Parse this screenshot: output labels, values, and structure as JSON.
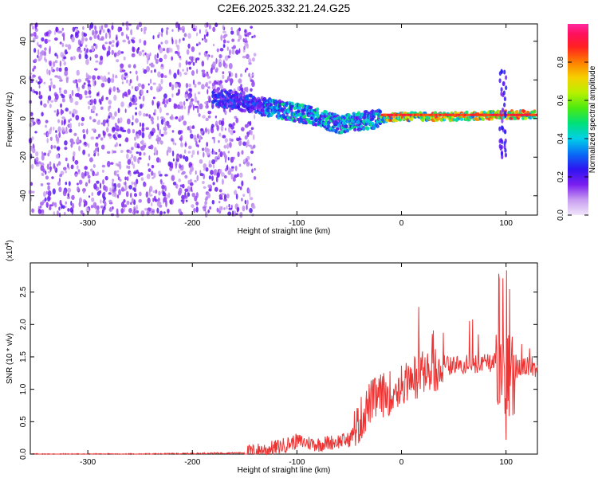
{
  "title": "C2E6.2025.332.21.24.G25",
  "chart_data": [
    {
      "type": "heatmap",
      "panel": "spectrogram",
      "xlabel": "Height of straight line (km)",
      "ylabel": "Frequency (Hz)",
      "xlim": [
        -355,
        130
      ],
      "ylim": [
        -50,
        49
      ],
      "xticks": [
        -300,
        -200,
        -100,
        0,
        100
      ],
      "yticks": [
        -40,
        -20,
        0,
        20,
        40
      ],
      "colorbar": {
        "label": "Normalized spectral amplitude",
        "range": [
          0,
          1
        ],
        "ticks": [
          0.0,
          0.2,
          0.4,
          0.6,
          0.8
        ]
      },
      "regions": [
        {
          "desc": "broadband noise",
          "x_range": [
            -355,
            -140
          ],
          "freq_range": [
            -50,
            49
          ],
          "amplitude": 0.12
        },
        {
          "desc": "signal band",
          "center_freq_at": [
            [
              -175,
              11
            ],
            [
              -130,
              6
            ],
            [
              -90,
              2
            ],
            [
              -60,
              -3
            ],
            [
              -35,
              -1
            ],
            [
              0,
              1
            ],
            [
              50,
              1
            ],
            [
              100,
              2
            ],
            [
              130,
              2
            ]
          ]
        },
        {
          "desc": "burst",
          "x": 97,
          "freq_range": [
            -22,
            25
          ]
        }
      ]
    },
    {
      "type": "line",
      "panel": "snr",
      "xlabel": "Height of straight line (km)",
      "ylabel": "SNR (10 * v/v)",
      "y_multiplier_label": "(x10",
      "y_multiplier_exp": "4",
      "y_multiplier_close": ")",
      "xlim": [
        -355,
        130
      ],
      "ylim": [
        0,
        2.95
      ],
      "xticks": [
        -300,
        -200,
        -100,
        0,
        100
      ],
      "yticks": [
        0.0,
        0.5,
        1.0,
        1.5,
        2.0,
        2.5
      ],
      "color": "#ee3333",
      "series": [
        {
          "x": [
            -355,
            -250,
            -150,
            -120,
            -100,
            -80,
            -60,
            -50,
            -40,
            -30,
            -20,
            -10,
            0,
            10,
            20,
            30,
            40,
            50,
            60,
            70,
            80,
            90,
            95,
            100,
            105,
            110,
            115,
            120,
            130
          ],
          "y": [
            0.0,
            0.0,
            0.02,
            0.1,
            0.2,
            0.15,
            0.2,
            0.22,
            0.5,
            0.8,
            0.9,
            0.95,
            1.05,
            1.15,
            1.25,
            1.3,
            1.35,
            1.38,
            1.38,
            1.38,
            1.4,
            1.42,
            1.4,
            1.0,
            1.4,
            1.3,
            1.35,
            1.35,
            1.33
          ]
        }
      ]
    }
  ]
}
